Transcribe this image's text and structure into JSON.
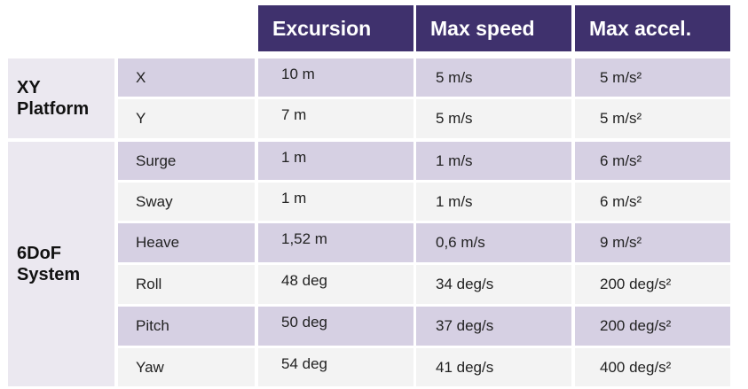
{
  "table": {
    "headers": [
      "Excursion",
      "Max speed",
      "Max accel."
    ],
    "groups": [
      {
        "label_line1": "XY",
        "label_line2": "Platform"
      },
      {
        "label_line1": "6DoF",
        "label_line2": "System"
      }
    ],
    "rows": [
      {
        "axis": "X",
        "excursion": "10 m",
        "max_speed": "5 m/s",
        "max_accel": "5 m/s²"
      },
      {
        "axis": "Y",
        "excursion": "7 m",
        "max_speed": "5 m/s",
        "max_accel": "5 m/s²"
      },
      {
        "axis": "Surge",
        "excursion": "1 m",
        "max_speed": "1 m/s",
        "max_accel": "6 m/s²"
      },
      {
        "axis": "Sway",
        "excursion": "1 m",
        "max_speed": "1 m/s",
        "max_accel": "6 m/s²"
      },
      {
        "axis": "Heave",
        "excursion": "1,52 m",
        "max_speed": "0,6 m/s",
        "max_accel": "9 m/s²"
      },
      {
        "axis": "Roll",
        "excursion": "48 deg",
        "max_speed": "34 deg/s",
        "max_accel": "200 deg/s²"
      },
      {
        "axis": "Pitch",
        "excursion": "50 deg",
        "max_speed": "37 deg/s",
        "max_accel": "200 deg/s²"
      },
      {
        "axis": "Yaw",
        "excursion": "54 deg",
        "max_speed": "41 deg/s",
        "max_accel": "400 deg/s²"
      }
    ],
    "colors": {
      "header_bg": "#3f316d",
      "row_dark": "#d6d0e3",
      "row_light": "#f3f3f3",
      "group_bg": "#ebe8f0"
    }
  }
}
